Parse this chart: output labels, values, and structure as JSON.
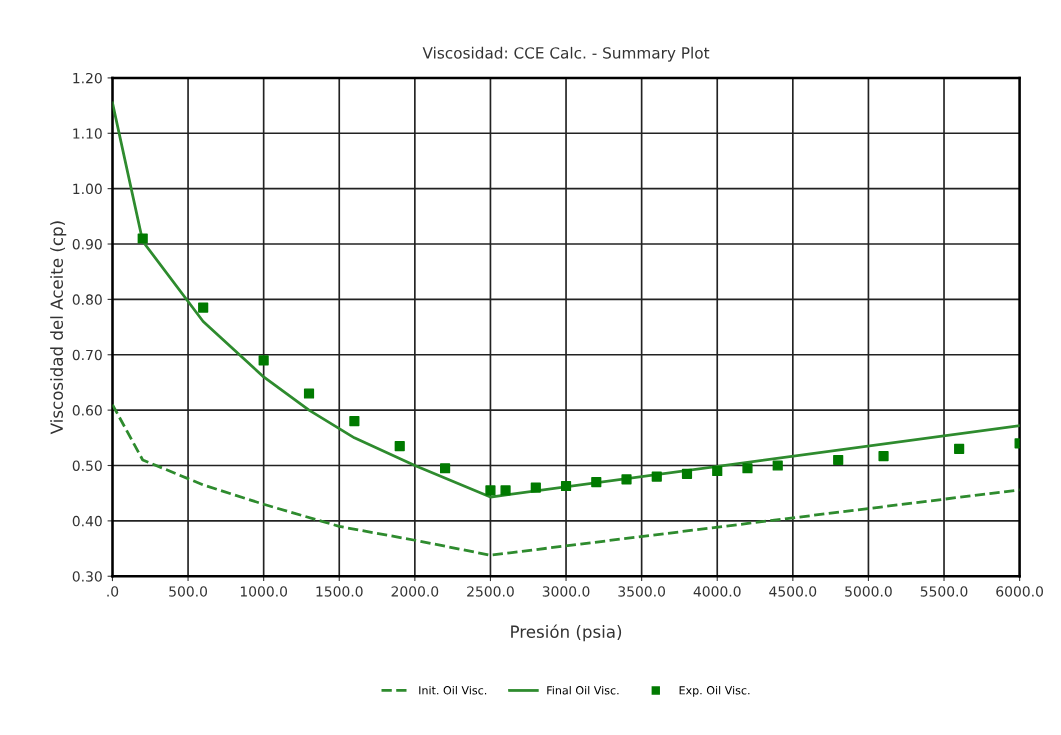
{
  "chart_data": {
    "type": "line",
    "title": "Viscosidad: CCE Calc. - Summary Plot",
    "xlabel": "Presión (psia)",
    "ylabel": "Viscosidad del Aceite (cp)",
    "series": [
      {
        "name": "Init. Oil Visc.",
        "line_style": "dashed",
        "color": "#2e8b2e",
        "x": [
          0,
          200,
          600,
          1000,
          1500,
          2000,
          2500,
          6000
        ],
        "values": [
          0.61,
          0.51,
          0.465,
          0.43,
          0.39,
          0.365,
          0.338,
          0.456
        ]
      },
      {
        "name": "Final Oil Visc.",
        "line_style": "solid",
        "color": "#2e8b2e",
        "x": [
          0,
          200,
          600,
          1000,
          1300,
          1600,
          2000,
          2500,
          6000
        ],
        "values": [
          1.155,
          0.905,
          0.76,
          0.66,
          0.6,
          0.55,
          0.5,
          0.443,
          0.572
        ]
      },
      {
        "name": "Exp. Oil Visc.",
        "type": "scatter",
        "marker": "square",
        "color": "#007a00",
        "x": [
          200,
          600,
          1000,
          1300,
          1600,
          1900,
          2200,
          2500,
          2600,
          2800,
          3000,
          3200,
          3400,
          3600,
          3800,
          4000,
          4200,
          4400,
          4800,
          5100,
          5600,
          6000
        ],
        "values": [
          0.91,
          0.785,
          0.69,
          0.63,
          0.58,
          0.535,
          0.495,
          0.455,
          0.455,
          0.46,
          0.463,
          0.47,
          0.475,
          0.48,
          0.485,
          0.49,
          0.495,
          0.5,
          0.51,
          0.517,
          0.53,
          0.54
        ]
      }
    ],
    "xlim": [
      0,
      6000
    ],
    "ylim": [
      0.3,
      1.2
    ],
    "xticks": [
      {
        "value": 0,
        "label": ".0"
      },
      {
        "value": 500,
        "label": "500.0"
      },
      {
        "value": 1000,
        "label": "1000.0"
      },
      {
        "value": 1500,
        "label": "1500.0"
      },
      {
        "value": 2000,
        "label": "2000.0"
      },
      {
        "value": 2500,
        "label": "2500.0"
      },
      {
        "value": 3000,
        "label": "3000.0"
      },
      {
        "value": 3500,
        "label": "3500.0"
      },
      {
        "value": 4000,
        "label": "4000.0"
      },
      {
        "value": 4500,
        "label": "4500.0"
      },
      {
        "value": 5000,
        "label": "5000.0"
      },
      {
        "value": 5500,
        "label": "5500.0"
      },
      {
        "value": 6000,
        "label": "6000.0"
      }
    ],
    "yticks": [
      {
        "value": 0.3,
        "label": "0.30"
      },
      {
        "value": 0.4,
        "label": "0.40"
      },
      {
        "value": 0.5,
        "label": "0.50"
      },
      {
        "value": 0.6,
        "label": "0.60"
      },
      {
        "value": 0.7,
        "label": "0.70"
      },
      {
        "value": 0.8,
        "label": "0.80"
      },
      {
        "value": 0.9,
        "label": "0.90"
      },
      {
        "value": 1.0,
        "label": "1.00"
      },
      {
        "value": 1.1,
        "label": "1.10"
      },
      {
        "value": 1.2,
        "label": "1.20"
      }
    ],
    "grid": true,
    "legend": "bottom"
  }
}
